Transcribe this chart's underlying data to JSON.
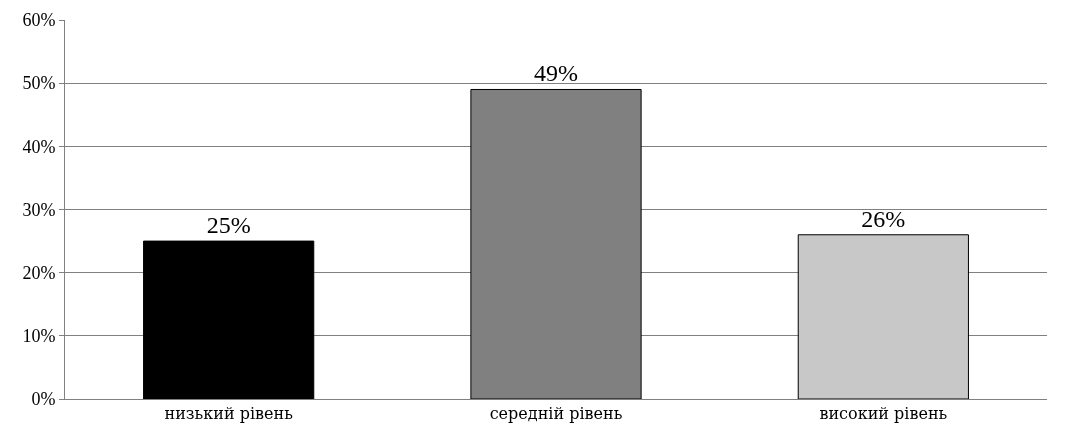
{
  "chart_data": {
    "type": "bar",
    "categories": [
      "низький рівень",
      "середній рівень",
      "високий рівень"
    ],
    "values": [
      25,
      49,
      26
    ],
    "colors": [
      "#000000",
      "#808080",
      "#c8c8c8"
    ],
    "value_labels": [
      "25%",
      "49%",
      "26%"
    ],
    "ylim": [
      0,
      60
    ],
    "yticks": [
      {
        "value": 0,
        "label": "0%"
      },
      {
        "value": 10,
        "label": "10%"
      },
      {
        "value": 20,
        "label": "20%"
      },
      {
        "value": 30,
        "label": "30%"
      },
      {
        "value": 40,
        "label": "40%"
      },
      {
        "value": 50,
        "label": "50%"
      },
      {
        "value": 60,
        "label": "60%"
      }
    ],
    "grid": "y",
    "legend": false
  }
}
